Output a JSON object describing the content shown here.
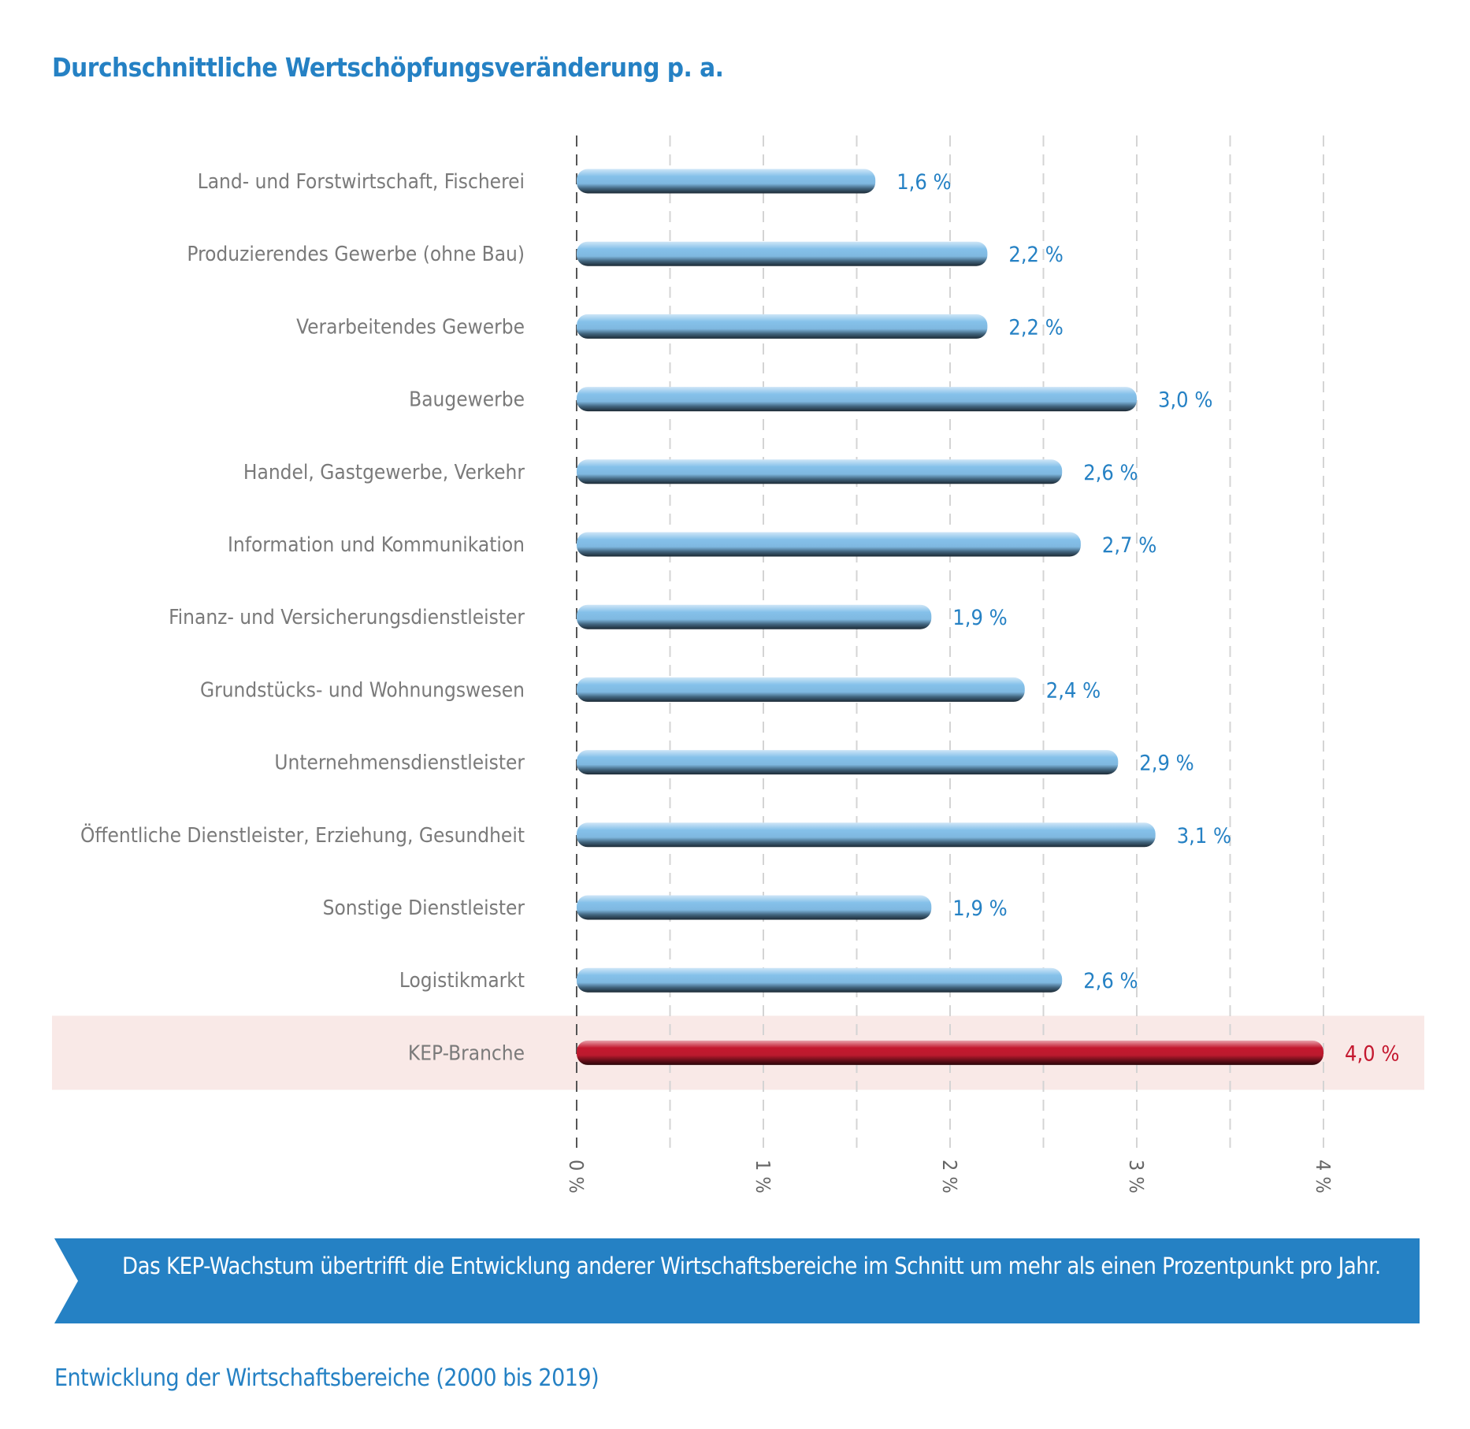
{
  "chart_data": {
    "type": "bar",
    "orientation": "horizontal",
    "title": "Durchschnittliche Wertschöpfungsveränderung p. a.",
    "categories": [
      "Land- und Forstwirtschaft, Fischerei",
      "Produzierendes Gewerbe (ohne Bau)",
      "Verarbeitendes Gewerbe",
      "Baugewerbe",
      "Handel, Gastgewerbe, Verkehr",
      "Information und Kommunikation",
      "Finanz- und Versicherungsdienstleister",
      "Grundstücks- und Wohnungswesen",
      "Unternehmensdienstleister",
      "Öffentliche Dienstleister, Erziehung, Gesundheit",
      "Sonstige Dienstleister",
      "Logistikmarkt",
      "KEP-Branche"
    ],
    "values": [
      1.6,
      2.2,
      2.2,
      3.0,
      2.6,
      2.7,
      1.9,
      2.4,
      2.9,
      3.1,
      1.9,
      2.6,
      4.0
    ],
    "data_labels": [
      "1,6 %",
      "2,2 %",
      "2,2 %",
      "3,0 %",
      "2,6 %",
      "2,7 %",
      "1,9 %",
      "2,4 %",
      "2,9 %",
      "3,1 %",
      "1,9 %",
      "2,6 %",
      "4,0 %"
    ],
    "highlight_index": 12,
    "xlim": [
      0,
      4.5
    ],
    "xticks": [
      0,
      1,
      2,
      3,
      4
    ],
    "xtick_labels": [
      "0 %",
      "1 %",
      "2 %",
      "3 %",
      "4 %"
    ],
    "grid": "dashed vertical every 0.5",
    "colors": {
      "bar": "#85c1ea",
      "highlight_bar": "#c4182f",
      "label": "#2581c4",
      "highlight_label": "#c4182f",
      "category_label": "#7a7a7a",
      "highlight_band": "#f9e9e7"
    }
  },
  "banner": {
    "text": "Das KEP-Wachstum übertrifft die Entwicklung anderer Wirtschaftsbereiche im Schnitt um mehr als einen Prozentpunkt pro Jahr."
  },
  "footer": {
    "text": "Entwicklung der Wirtschaftsbereiche (2000 bis 2019)"
  }
}
